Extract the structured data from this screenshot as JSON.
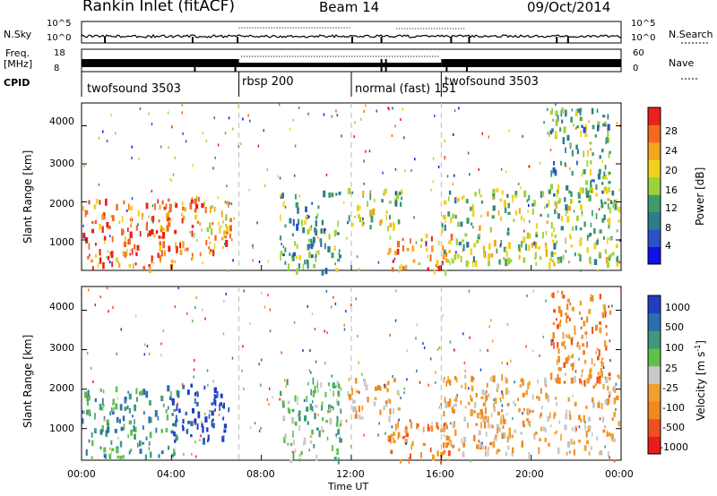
{
  "header": {
    "station": "Rankin Inlet (fitACF)",
    "beam": "Beam 14",
    "date": "09/Oct/2014"
  },
  "top_panels": {
    "nsky_label": "N.Sky",
    "nsky_ticks": [
      "10^5",
      "10^0"
    ],
    "nsearch_label": "N.Search",
    "nsearch_ticks": [
      "10^5",
      "10^0"
    ],
    "freq_label": "Freq.",
    "freq_unit": "[MHz]",
    "freq_ticks": [
      "18",
      "8"
    ],
    "nave_label": "Nave",
    "nave_ticks": [
      "60",
      "0"
    ],
    "cpid_label": "CPID"
  },
  "cpid_segments": [
    {
      "label": "twofsound 3503",
      "start_h": 0.0,
      "end_h": 7.0
    },
    {
      "label": "rbsp 200",
      "start_h": 7.0,
      "end_h": 12.0
    },
    {
      "label": "normal (fast) 151",
      "start_h": 12.0,
      "end_h": 16.0
    },
    {
      "label": "twofsound 3503",
      "start_h": 16.0,
      "end_h": 24.0
    }
  ],
  "x_axis": {
    "label": "Time UT",
    "ticks": [
      "00:00",
      "04:00",
      "08:00",
      "12:00",
      "16:00",
      "20:00",
      "00:00"
    ],
    "range_h": [
      0,
      24
    ]
  },
  "power_panel": {
    "ylabel": "Slant Range [km]",
    "yticks": [
      "1000",
      "2000",
      "3000",
      "4000"
    ],
    "cb_label": "Power [dB]",
    "cb_ticks": [
      "4",
      "8",
      "12",
      "16",
      "20",
      "24",
      "28"
    ],
    "cb_colors": [
      "#1010e8",
      "#2a52c8",
      "#2b7d8a",
      "#3f9c6a",
      "#9ed23a",
      "#f0d21e",
      "#f4a51e",
      "#f36a1e",
      "#e8201e"
    ]
  },
  "velocity_panel": {
    "ylabel": "Slant Range [km]",
    "yticks": [
      "1000",
      "2000",
      "3000",
      "4000"
    ],
    "cb_label": "Velocity [m s",
    "cb_label_sup": "-1",
    "cb_label_end": "]",
    "cb_ticks": [
      "1000",
      "500",
      "100",
      "25",
      "-25",
      "-100",
      "-500",
      "-1000"
    ],
    "cb_colors": [
      "#1f3fc0",
      "#2c6fb0",
      "#3e9a7a",
      "#5fc04a",
      "#c8c8c8",
      "#f0a030",
      "#f08a20",
      "#f05020",
      "#e81c1c"
    ]
  },
  "chart_data": [
    {
      "type": "heatmap",
      "title": "Power",
      "xlabel": "Time UT",
      "ylabel": "Slant Range [km]",
      "xlim": [
        0,
        24
      ],
      "ylim": [
        200,
        4600
      ],
      "colorbar": {
        "label": "Power [dB]",
        "ticks": [
          4,
          8,
          12,
          16,
          20,
          24,
          28
        ]
      },
      "clusters": [
        {
          "t0": 0.0,
          "t1": 4.3,
          "r0": 300,
          "r1": 2100,
          "level": 26
        },
        {
          "t0": 4.3,
          "t1": 6.6,
          "r0": 600,
          "r1": 2200,
          "level": 22
        },
        {
          "t0": 8.8,
          "t1": 11.5,
          "r0": 200,
          "r1": 2300,
          "level": 10
        },
        {
          "t0": 11.8,
          "t1": 14.2,
          "r0": 1300,
          "r1": 2400,
          "level": 16
        },
        {
          "t0": 13.6,
          "t1": 16.5,
          "r0": 200,
          "r1": 1200,
          "level": 24
        },
        {
          "t0": 16.0,
          "t1": 23.9,
          "r0": 400,
          "r1": 2400,
          "level": 14
        },
        {
          "t0": 20.8,
          "t1": 23.5,
          "r0": 2200,
          "r1": 4500,
          "level": 10
        }
      ]
    },
    {
      "type": "heatmap",
      "title": "Velocity",
      "xlabel": "Time UT",
      "ylabel": "Slant Range [km]",
      "xlim": [
        0,
        24
      ],
      "ylim": [
        200,
        4600
      ],
      "colorbar": {
        "label": "Velocity [m s-1]",
        "ticks": [
          1000,
          500,
          100,
          25,
          -25,
          -100,
          -500,
          -1000
        ]
      },
      "clusters": [
        {
          "t0": 0.0,
          "t1": 4.3,
          "r0": 300,
          "r1": 2100,
          "level": 100
        },
        {
          "t0": 4.0,
          "t1": 6.6,
          "r0": 700,
          "r1": 2200,
          "level": 700
        },
        {
          "t0": 8.8,
          "t1": 11.5,
          "r0": 200,
          "r1": 2300,
          "level": 50
        },
        {
          "t0": 11.8,
          "t1": 14.2,
          "r0": 1300,
          "r1": 2400,
          "level": -80
        },
        {
          "t0": 13.6,
          "t1": 16.5,
          "r0": 200,
          "r1": 1200,
          "level": -300
        },
        {
          "t0": 16.0,
          "t1": 23.9,
          "r0": 400,
          "r1": 2400,
          "level": -60
        },
        {
          "t0": 20.8,
          "t1": 23.5,
          "r0": 2200,
          "r1": 4500,
          "level": -150
        }
      ]
    }
  ]
}
